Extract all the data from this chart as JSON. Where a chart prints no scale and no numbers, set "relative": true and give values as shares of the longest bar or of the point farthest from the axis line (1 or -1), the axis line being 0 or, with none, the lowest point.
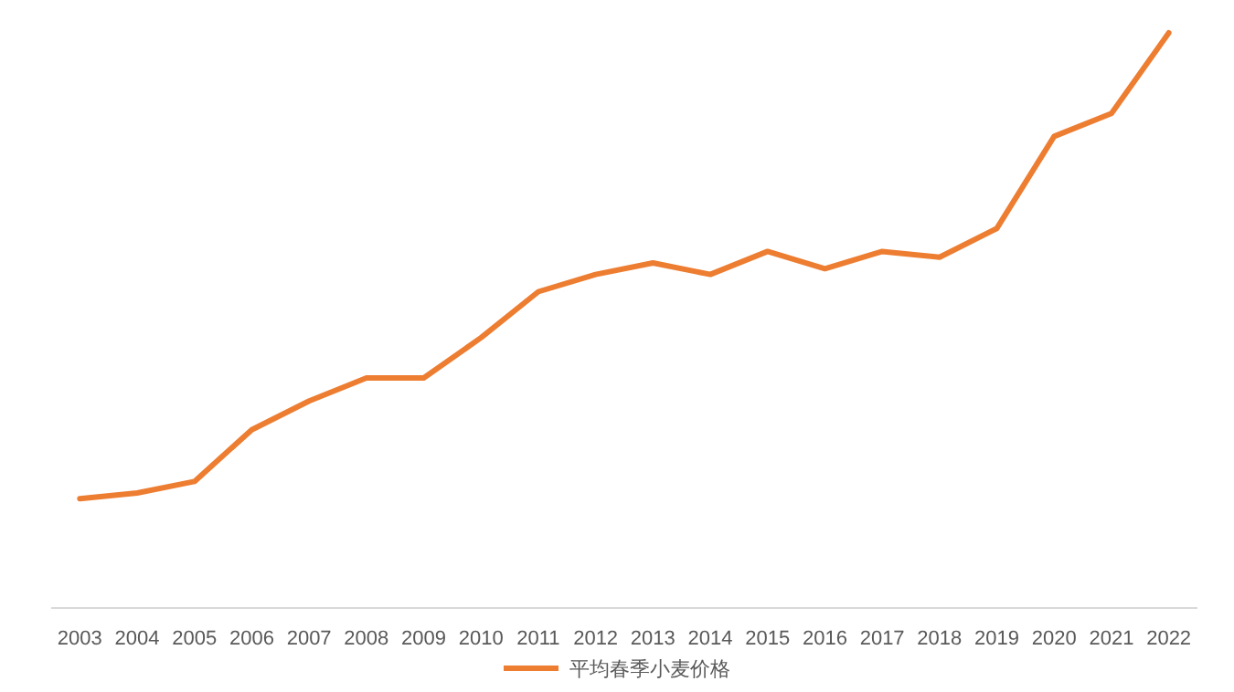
{
  "chart_data": {
    "type": "line",
    "relative": true,
    "legend": "bottom",
    "categories": [
      "2003",
      "2004",
      "2005",
      "2006",
      "2007",
      "2008",
      "2009",
      "2010",
      "2011",
      "2012",
      "2013",
      "2014",
      "2015",
      "2016",
      "2017",
      "2018",
      "2019",
      "2020",
      "2021",
      "2022"
    ],
    "series": [
      {
        "name": "平均春季小麦价格",
        "color": "#ed7d31",
        "values": [
          0.19,
          0.2,
          0.22,
          0.31,
          0.36,
          0.4,
          0.4,
          0.47,
          0.55,
          0.58,
          0.6,
          0.58,
          0.62,
          0.59,
          0.62,
          0.61,
          0.66,
          0.82,
          0.86,
          1
        ]
      }
    ]
  }
}
